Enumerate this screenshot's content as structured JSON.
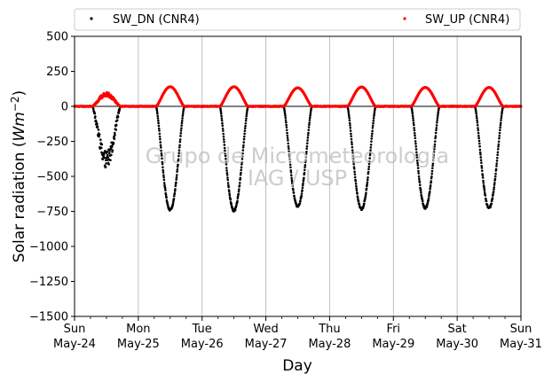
{
  "chart_data": {
    "type": "scatter",
    "ylabel_main": "Solar radiation (",
    "ylabel_unit": "Wm",
    "ylabel_exp": "−2",
    "ylabel_close": ")",
    "xlabel": "Day",
    "ylim": [
      -1500,
      500
    ],
    "yticks": [
      500,
      250,
      0,
      -250,
      -500,
      -750,
      -1000,
      -1250,
      -1500
    ],
    "ytick_labels": [
      "500",
      "250",
      "0",
      "−250",
      "−500",
      "−750",
      "−1000",
      "−1250",
      "−1500"
    ],
    "xlim_days": [
      0,
      7
    ],
    "xticks": [
      {
        "day": "Sun",
        "date": "May-24"
      },
      {
        "day": "Mon",
        "date": "May-25"
      },
      {
        "day": "Tue",
        "date": "May-26"
      },
      {
        "day": "Wed",
        "date": "May-27"
      },
      {
        "day": "Thu",
        "date": "May-28"
      },
      {
        "day": "Fri",
        "date": "May-29"
      },
      {
        "day": "Sat",
        "date": "May-30"
      },
      {
        "day": "Sun",
        "date": "May-31"
      }
    ],
    "grid": "vertical",
    "zero_line": true,
    "legend_position": "top, above plot",
    "watermark": [
      "Grupo de Micrometeorologia",
      "IAG / USP"
    ],
    "series": [
      {
        "name": "SW_DN (CNR4)",
        "color": "#000000",
        "daily_minimum": [
          -380,
          -740,
          -745,
          -715,
          -735,
          -725,
          -725
        ]
      },
      {
        "name": "SW_UP (CNR4)",
        "color": "#ff0000",
        "daily_maximum": [
          85,
          140,
          140,
          132,
          138,
          135,
          135
        ]
      }
    ]
  }
}
